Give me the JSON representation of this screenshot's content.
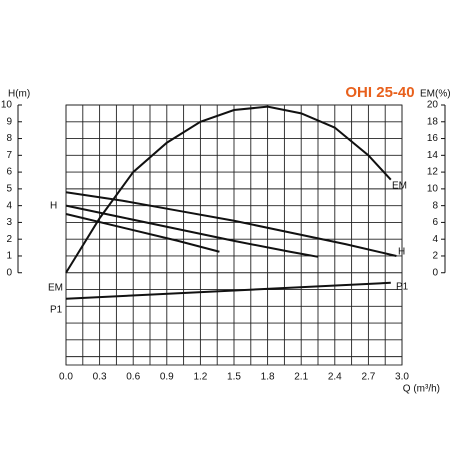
{
  "chart_data": {
    "type": "line",
    "title": "OHI 25-40",
    "title_color": "#e8601c",
    "y_label": "H(m)",
    "y2_label": "EM(%)",
    "x_label": "Q (m³/h)",
    "xlim": [
      0,
      3
    ],
    "xticks": [
      {
        "value": 0,
        "label": "0.0"
      },
      0.3,
      0.6,
      0.9,
      1.2,
      1.5,
      1.8,
      2.1,
      2.4,
      2.7,
      {
        "value": 3,
        "label": "3.0"
      }
    ],
    "ylim": [
      -5.5,
      10
    ],
    "yticks": [
      0,
      1,
      2,
      3,
      4,
      5,
      6,
      7,
      8,
      9,
      10
    ],
    "y2lim": [
      -11,
      20
    ],
    "y2ticks": [
      0,
      2,
      4,
      6,
      8,
      10,
      12,
      14,
      16,
      18,
      20
    ],
    "grid": true,
    "series": [
      {
        "name": "H",
        "color": "#111111",
        "x": [
          0,
          0.5,
          1,
          1.5,
          2,
          2.5,
          2.95
        ],
        "values": [
          4.8,
          4.3,
          3.7,
          3.1,
          2.4,
          1.7,
          1.0
        ]
      },
      {
        "name": "H",
        "color": "#111111",
        "x": [
          0,
          0.5,
          1,
          1.5,
          2,
          2.25
        ],
        "values": [
          4.0,
          3.3,
          2.6,
          1.9,
          1.25,
          0.95
        ]
      },
      {
        "name": "H",
        "color": "#111111",
        "x": [
          0,
          0.5,
          1,
          1.37
        ],
        "values": [
          3.5,
          2.7,
          1.9,
          1.25
        ]
      },
      {
        "name": "EM",
        "color": "#111111",
        "axis": "y2",
        "x": [
          0,
          0.3,
          0.6,
          0.9,
          1.2,
          1.5,
          1.8,
          2.1,
          2.4,
          2.7,
          2.9
        ],
        "values": [
          0,
          6.5,
          12,
          15.5,
          18,
          19.4,
          19.8,
          19,
          17.3,
          14,
          11.1
        ]
      },
      {
        "name": "P1",
        "color": "#111111",
        "x": [
          0,
          2.9
        ],
        "values": [
          -1.55,
          -0.6
        ]
      }
    ]
  }
}
